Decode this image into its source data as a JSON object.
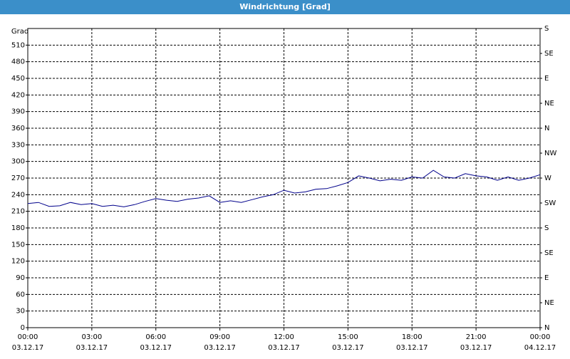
{
  "chart_data": {
    "type": "line",
    "title": "Windrichtung [Grad]",
    "y_label": "Grad",
    "x": [
      0,
      0.5,
      1,
      1.5,
      2,
      2.5,
      3,
      3.5,
      4,
      4.5,
      5,
      5.5,
      6,
      6.5,
      7,
      7.5,
      8,
      8.5,
      9,
      9.5,
      10,
      10.5,
      11,
      11.5,
      12,
      12.5,
      13,
      13.5,
      14,
      14.5,
      15,
      15.5,
      16,
      16.5,
      17,
      17.5,
      18,
      18.5,
      19,
      19.5,
      20,
      20.5,
      21,
      21.5,
      22,
      22.5,
      23,
      23.5,
      24
    ],
    "series": [
      {
        "name": "Windrichtung",
        "color": "#00008b",
        "values": [
          224,
          226,
          219,
          220,
          226,
          222,
          224,
          219,
          221,
          218,
          222,
          228,
          233,
          230,
          228,
          232,
          234,
          238,
          226,
          229,
          226,
          231,
          236,
          240,
          248,
          243,
          245,
          250,
          251,
          256,
          262,
          274,
          270,
          265,
          268,
          266,
          272,
          270,
          284,
          272,
          270,
          278,
          274,
          272,
          266,
          272,
          266,
          270,
          276
        ]
      }
    ],
    "xlim": [
      0,
      24
    ],
    "xticks": [
      {
        "value": 0,
        "label": "00:00"
      },
      {
        "value": 3,
        "label": "03:00"
      },
      {
        "value": 6,
        "label": "06:00"
      },
      {
        "value": 9,
        "label": "09:00"
      },
      {
        "value": 12,
        "label": "12:00"
      },
      {
        "value": 15,
        "label": "15:00"
      },
      {
        "value": 18,
        "label": "18:00"
      },
      {
        "value": 21,
        "label": "21:00"
      },
      {
        "value": 24,
        "label": "00:00"
      }
    ],
    "xtick_dates": [
      "03.12.17",
      "03.12.17",
      "03.12.17",
      "03.12.17",
      "03.12.17",
      "03.12.17",
      "03.12.17",
      "03.12.17",
      "04.12.17"
    ],
    "ylim": [
      0,
      540
    ],
    "yticks": [
      0,
      30,
      60,
      90,
      120,
      150,
      180,
      210,
      240,
      270,
      300,
      330,
      360,
      390,
      420,
      450,
      480,
      510
    ],
    "y2lim": [
      0,
      540
    ],
    "y2ticks": [
      {
        "value": 0,
        "label": "N"
      },
      {
        "value": 45,
        "label": "NE"
      },
      {
        "value": 90,
        "label": "E"
      },
      {
        "value": 135,
        "label": "SE"
      },
      {
        "value": 180,
        "label": "S"
      },
      {
        "value": 225,
        "label": "SW"
      },
      {
        "value": 270,
        "label": "W"
      },
      {
        "value": 315,
        "label": "NW"
      },
      {
        "value": 360,
        "label": "N"
      },
      {
        "value": 405,
        "label": "NE"
      },
      {
        "value": 450,
        "label": "E"
      },
      {
        "value": 495,
        "label": "SE"
      },
      {
        "value": 540,
        "label": "S"
      }
    ],
    "grid": true
  }
}
